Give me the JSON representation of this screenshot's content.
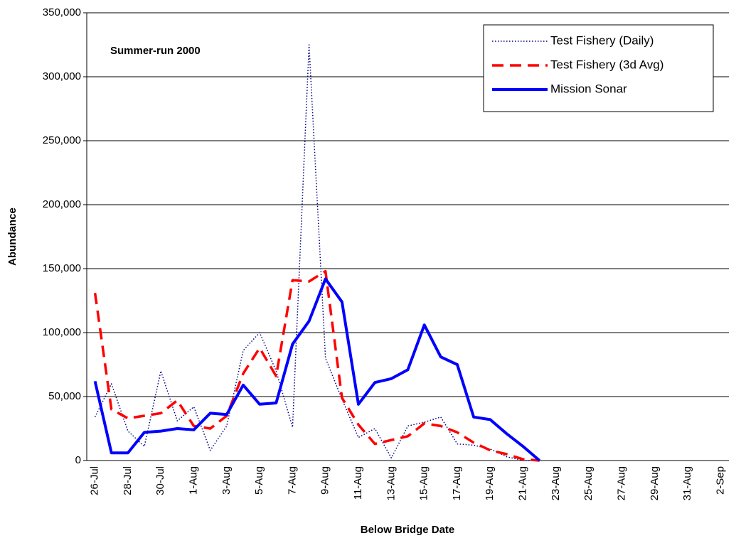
{
  "chart_data": {
    "type": "line",
    "title": "Summer-run 2000",
    "x_label": "Below Bridge Date",
    "y_label": "Abundance",
    "categories": [
      "26-Jul",
      null,
      "28-Jul",
      null,
      "30-Jul",
      null,
      "1-Aug",
      null,
      "3-Aug",
      null,
      "5-Aug",
      null,
      "7-Aug",
      null,
      "9-Aug",
      null,
      "11-Aug",
      null,
      "13-Aug",
      null,
      "15-Aug",
      null,
      "17-Aug",
      null,
      "19-Aug",
      null,
      "21-Aug",
      null,
      "23-Aug",
      null,
      "25-Aug",
      null,
      "27-Aug",
      null,
      "29-Aug",
      null,
      "31-Aug",
      null,
      "2-Sep"
    ],
    "series": [
      {
        "name": "Test Fishery (Daily)",
        "color": "#000080",
        "style": "dotted",
        "values": [
          34000,
          60000,
          23000,
          11000,
          70000,
          31000,
          42000,
          8000,
          27000,
          86000,
          100000,
          70000,
          26000,
          325000,
          80000,
          48000,
          18000,
          25000,
          2000,
          27000,
          30000,
          34000,
          13000,
          12000,
          9000,
          3000,
          0,
          0,
          null,
          null,
          null,
          null,
          null,
          null,
          null,
          null,
          null,
          null,
          null
        ]
      },
      {
        "name": "Test Fishery (3d Avg)",
        "color": "#ff0000",
        "style": "dashed",
        "values": [
          131000,
          40000,
          33000,
          35000,
          37000,
          47000,
          27000,
          25000,
          35000,
          68000,
          88000,
          66000,
          141000,
          140000,
          148000,
          49000,
          28000,
          13000,
          16000,
          19000,
          29000,
          27000,
          22000,
          14000,
          8000,
          5000,
          1000,
          0,
          null,
          null,
          null,
          null,
          null,
          null,
          null,
          null,
          null,
          null,
          null
        ]
      },
      {
        "name": "Mission Sonar",
        "color": "#0000ff",
        "style": "solid",
        "values": [
          62000,
          6000,
          6000,
          22000,
          23000,
          25000,
          24000,
          37000,
          36000,
          59000,
          44000,
          45000,
          91000,
          109000,
          142000,
          124000,
          44000,
          61000,
          64000,
          71000,
          106000,
          81000,
          75000,
          34000,
          32000,
          21000,
          11000,
          0,
          null,
          null,
          null,
          null,
          null,
          null,
          null,
          null,
          null,
          null,
          null
        ]
      }
    ],
    "ylim": [
      0,
      350000
    ],
    "yticks": [
      {
        "value": 0,
        "label": "0"
      },
      {
        "value": 50000,
        "label": "50,000"
      },
      {
        "value": 100000,
        "label": "100,000"
      },
      {
        "value": 150000,
        "label": "150,000"
      },
      {
        "value": 200000,
        "label": "200,000"
      },
      {
        "value": 250000,
        "label": "250,000"
      },
      {
        "value": 300000,
        "label": "300,000"
      },
      {
        "value": 350000,
        "label": "350,000"
      }
    ],
    "grid": true,
    "legend": "top-right"
  }
}
